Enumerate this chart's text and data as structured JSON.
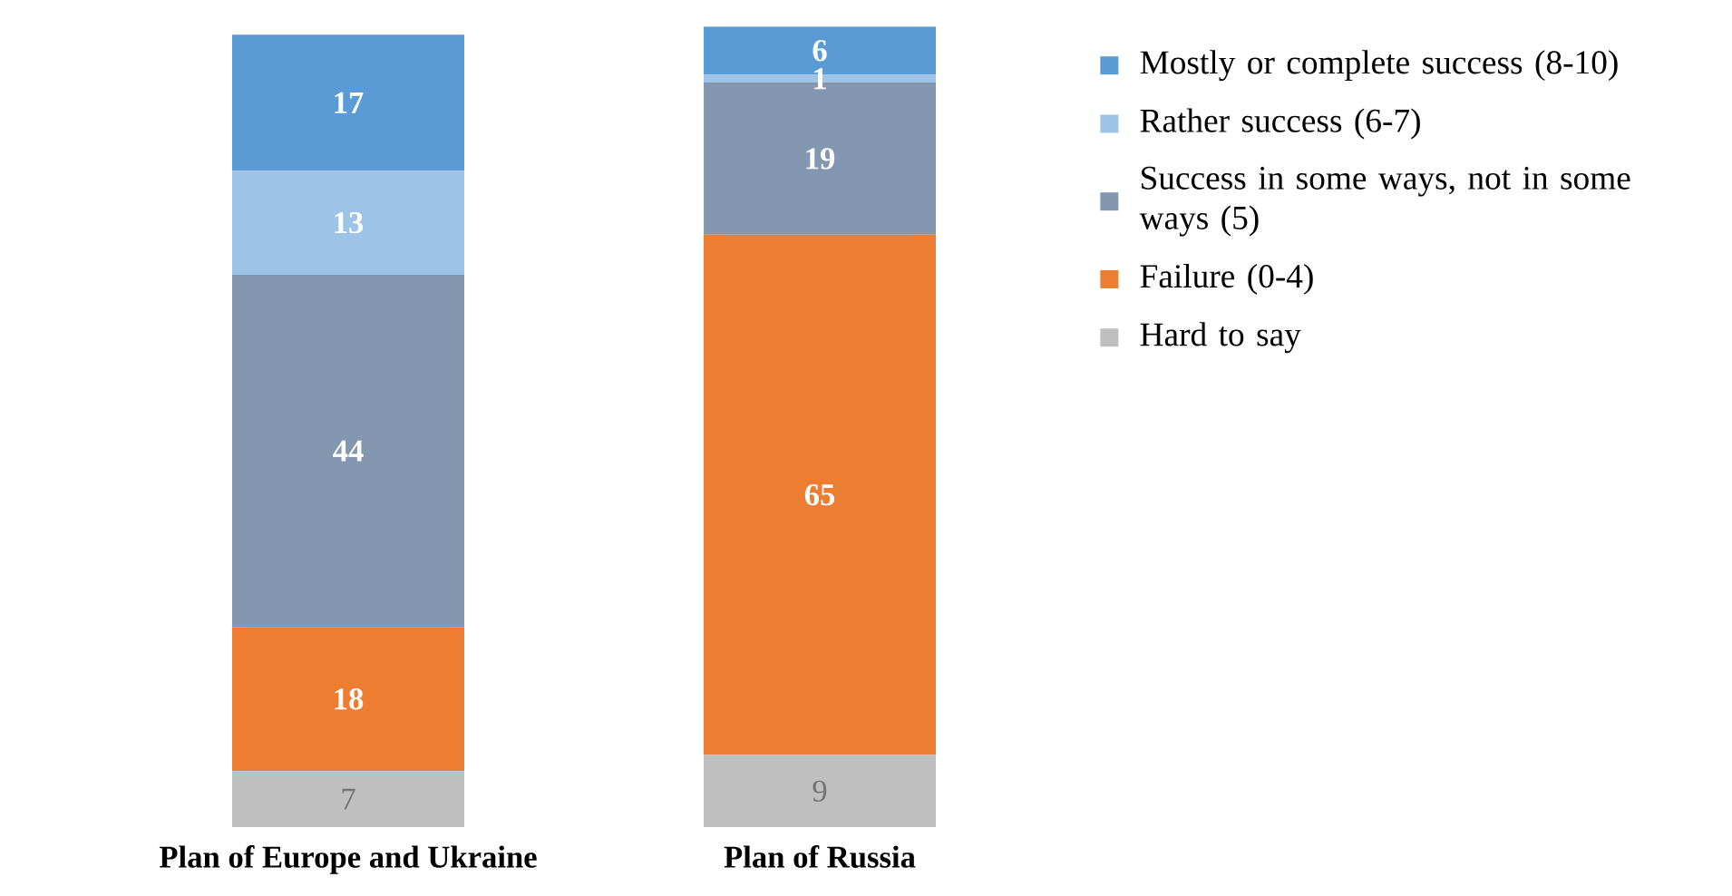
{
  "chart_data": {
    "type": "bar",
    "stacked": true,
    "data_labels": true,
    "legend": "right",
    "categories": [
      "Plan of Europe and Ukraine",
      "Plan of Russia"
    ],
    "series": [
      {
        "name": "Hard to say",
        "color": "#bfbfbf",
        "values": [
          7,
          9
        ]
      },
      {
        "name": "Failure (0-4)",
        "color": "#ed7d31",
        "values": [
          18,
          65
        ]
      },
      {
        "name": "Success in some ways, not in some ways (5)",
        "color": "#8497b0",
        "values": [
          44,
          19
        ]
      },
      {
        "name": "Rather success (6-7)",
        "color": "#9dc3e6",
        "values": [
          13,
          1
        ]
      },
      {
        "name": "Mostly or complete success (8-10)",
        "color": "#5b9bd5",
        "values": [
          17,
          6
        ]
      }
    ]
  }
}
